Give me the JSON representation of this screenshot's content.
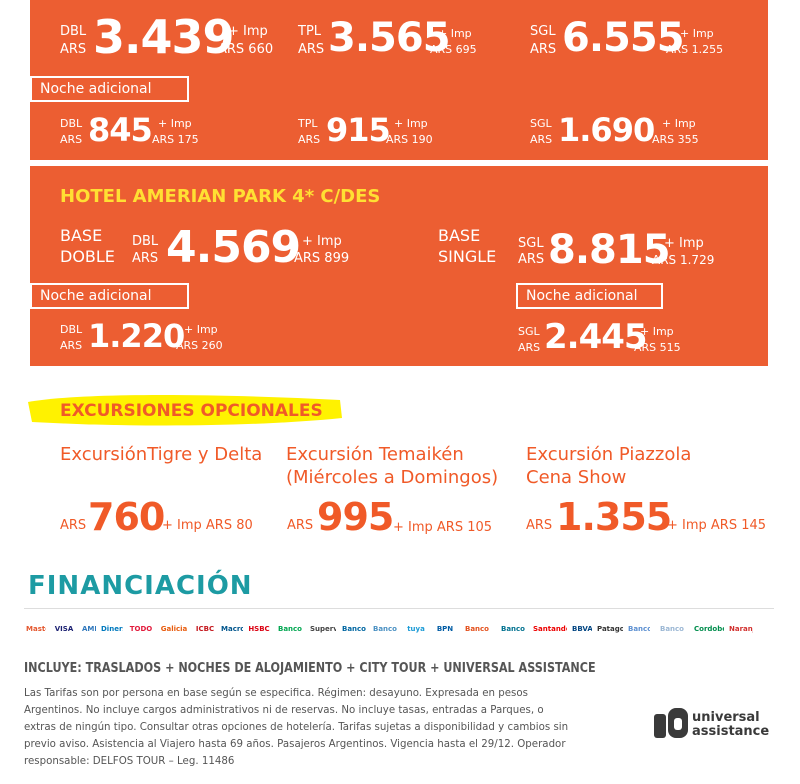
{
  "rates_row1": [
    {
      "type": "DBL",
      "cur": "ARS",
      "price": "3.439",
      "imp_label": "+ Imp",
      "imp_value": "ARS 660"
    },
    {
      "type": "TPL",
      "cur": "ARS",
      "price": "3.565",
      "imp_label": "+ Imp",
      "imp_value": "ARS 695"
    },
    {
      "type": "SGL",
      "cur": "ARS",
      "price": "6.555",
      "imp_label": "+ Imp",
      "imp_value": "ARS 1.255"
    }
  ],
  "extra_night_label": "Noche adicional",
  "rates_row2": [
    {
      "type": "DBL",
      "cur": "ARS",
      "price": "845",
      "imp_label": "+ Imp",
      "imp_value": "ARS 175"
    },
    {
      "type": "TPL",
      "cur": "ARS",
      "price": "915",
      "imp_label": "+ Imp",
      "imp_value": "ARS 190"
    },
    {
      "type": "SGL",
      "cur": "ARS",
      "price": "1.690",
      "imp_label": "+ Imp",
      "imp_value": "ARS 355"
    }
  ],
  "hotel": {
    "title": "HOTEL AMERIAN PARK 4* C/DES",
    "base_double": {
      "line1": "BASE",
      "line2": "DOBLE",
      "type": "DBL",
      "cur": "ARS",
      "price": "4.569",
      "imp_label": "+ Imp",
      "imp_value": "ARS 899"
    },
    "base_single": {
      "line1": "BASE",
      "line2": "SINGLE",
      "type": "SGL",
      "cur": "ARS",
      "price": "8.815",
      "imp_label": "+ Imp",
      "imp_value": "ARS 1.729"
    },
    "extra_double": {
      "type": "DBL",
      "cur": "ARS",
      "price": "1.220",
      "imp_label": "+ Imp",
      "imp_value": "ARS 260"
    },
    "extra_single": {
      "type": "SGL",
      "cur": "ARS",
      "price": "2.445",
      "imp_label": "+ Imp",
      "imp_value": "ARS 515"
    }
  },
  "excursions": {
    "heading": "EXCURSIONES OPCIONALES",
    "items": [
      {
        "line1": "ExcursiónTigre y Delta",
        "line2": "",
        "cur": "ARS",
        "price": "760",
        "imp": "+ Imp ARS 80"
      },
      {
        "line1": "Excursión Temaikén",
        "line2": "(Miércoles a Domingos)",
        "cur": "ARS",
        "price": "995",
        "imp": "+ Imp ARS 105"
      },
      {
        "line1": "Excursión  Piazzola",
        "line2": "Cena Show",
        "cur": "ARS",
        "price": "1.355",
        "imp": "+ Imp ARS 145"
      }
    ]
  },
  "financing": {
    "heading": "FINANCIACIÓN",
    "logos": [
      "MasterCard",
      "VISA",
      "AMEX",
      "Diners",
      "TODO PAGO",
      "Galicia",
      "ICBC",
      "Macro",
      "HSBC",
      "Banco Provincia",
      "Supervielle",
      "Banco Ciudad",
      "Banco Nación",
      "tuya",
      "BPN",
      "Banco Credicoop",
      "Banco Comafi",
      "Santander Río",
      "BBVA",
      "Patagonia",
      "Banco San Juan",
      "Banco Santa Fe",
      "Cordobesa",
      "Naranja"
    ]
  },
  "includes": "INCLUYE: TRASLADOS + NOCHES DE ALOJAMIENTO + CITY TOUR + UNIVERSAL ASSISTANCE",
  "fine_print": [
    "Las Tarifas son por persona en base según se especifica. Régimen: desayuno. Expresada en pesos",
    "Argentinos. No incluye cargos administrativos ni de reservas. No incluye tasas, entradas a Parques, o",
    "extras de ningún tipo. Consultar otras opciones de hotelería. Tarifas sujetas a disponibilidad y cambios sin",
    "previo aviso. Asistencia al Viajero hasta 69 años. Pasajeros Argentinos. Vigencia hasta el 29/12. Operador",
    "responsable: DELFOS TOUR – Leg. 11486"
  ],
  "brand": {
    "line1": "universal",
    "line2": "assistance"
  },
  "colors": {
    "panel": "#ec5e32",
    "heading_yellow": "#ffe033",
    "excursion_orange": "#f05a28",
    "financing_teal": "#1d9ba3",
    "highlighter": "#fff200"
  }
}
